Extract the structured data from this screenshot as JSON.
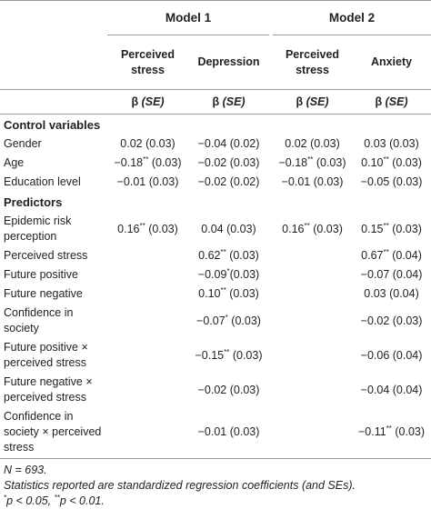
{
  "table": {
    "groups": [
      "Model 1",
      "Model 2"
    ],
    "columns": [
      "Perceived stress",
      "Depression",
      "Perceived stress",
      "Anxiety"
    ],
    "stat_beta": "β",
    "stat_se": "(SE)",
    "sections": [
      {
        "title": "Control variables",
        "rows": [
          {
            "label": "Gender",
            "cells": [
              "0.02 (0.03)",
              "−0.04 (0.02)",
              "0.02 (0.03)",
              "0.03 (0.03)"
            ]
          },
          {
            "label": "Age",
            "cells": [
              "−0.18** (0.03)",
              "−0.02 (0.03)",
              "−0.18** (0.03)",
              "0.10** (0.03)"
            ]
          },
          {
            "label": "Education level",
            "cells": [
              "−0.01 (0.03)",
              "−0.02 (0.02)",
              "−0.01 (0.03)",
              "−0.05 (0.03)"
            ]
          }
        ]
      },
      {
        "title": "Predictors",
        "rows": [
          {
            "label": "Epidemic risk perception",
            "cells": [
              "0.16** (0.03)",
              "0.04 (0.03)",
              "0.16** (0.03)",
              "0.15** (0.03)"
            ]
          },
          {
            "label": "Perceived stress",
            "cells": [
              null,
              "0.62** (0.03)",
              null,
              "0.67** (0.04)"
            ]
          },
          {
            "label": "Future positive",
            "cells": [
              null,
              "−0.09*(0.03)",
              null,
              "−0.07 (0.04)"
            ]
          },
          {
            "label": "Future negative",
            "cells": [
              null,
              "0.10** (0.03)",
              null,
              "0.03 (0.04)"
            ]
          },
          {
            "label": "Confidence in society",
            "cells": [
              null,
              "−0.07* (0.03)",
              null,
              "−0.02 (0.03)"
            ]
          },
          {
            "label": "Future positive × perceived stress",
            "cells": [
              null,
              "−0.15** (0.03)",
              null,
              "−0.06 (0.04)"
            ]
          },
          {
            "label": "Future negative × perceived stress",
            "cells": [
              null,
              "−0.02 (0.03)",
              null,
              "−0.04 (0.04)"
            ]
          },
          {
            "label": "Confidence in society × perceived stress",
            "cells": [
              null,
              "−0.01 (0.03)",
              null,
              "−0.11** (0.03)"
            ]
          }
        ]
      }
    ]
  },
  "notes": [
    "N = 693.",
    "Statistics reported are standardized regression coefficients (and SEs).",
    "*p < 0.05, **p < 0.01."
  ]
}
